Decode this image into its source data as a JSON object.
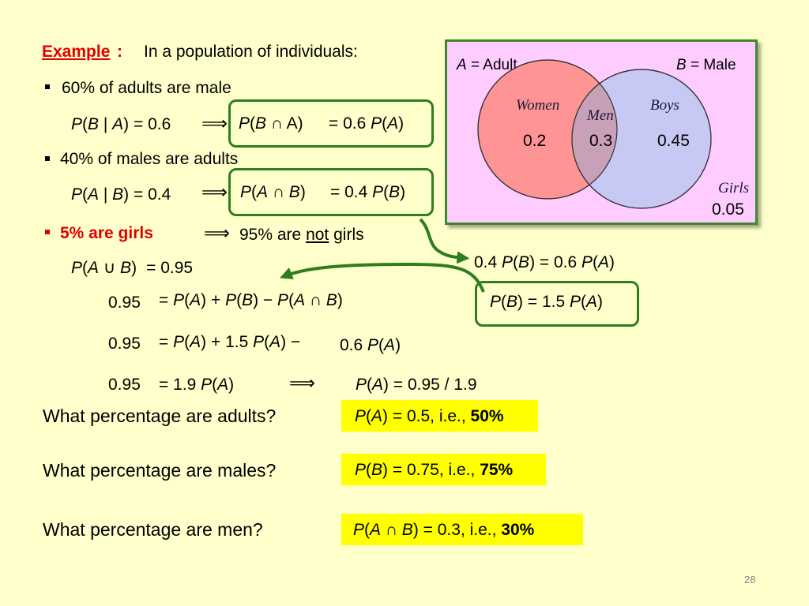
{
  "heading": {
    "label": "Example",
    "colon": ":",
    "text": "In a population of individuals:"
  },
  "bullet1": {
    "text": "60% of adults are male"
  },
  "eq1": {
    "left": [
      "P",
      "(",
      "B",
      " | ",
      "A",
      ") = 0.6"
    ],
    "arrow": "⟹",
    "right": [
      "P",
      "(",
      "B",
      " ∩ A)",
      "= 0.6 ",
      "P",
      "(",
      "A",
      ")"
    ]
  },
  "bullet2": {
    "text": "40% of males are adults"
  },
  "eq2": {
    "left": [
      "P",
      "(",
      "A",
      " | ",
      "B",
      ") = 0.4"
    ],
    "arrow": "⟹",
    "right": [
      "P",
      "(",
      "A",
      " ∩ ",
      "B",
      ")",
      "= 0.4 ",
      "P",
      "(",
      "B",
      ")"
    ]
  },
  "bullet3": {
    "text": "5% are girls",
    "arrow": "⟹",
    "then_pre": "95% are ",
    "then_not": "not",
    "then_post": " girls"
  },
  "eq3": {
    "parts": [
      "P",
      "(",
      "A",
      " ∪ ",
      "B",
      ")",
      "= 0.95"
    ]
  },
  "eq4": {
    "lhs": "0.95",
    "parts": [
      "= ",
      "P",
      "(",
      "A",
      ") + ",
      "P",
      "(",
      "B",
      ") − ",
      "P",
      "(",
      "A",
      " ∩ ",
      "B",
      ")"
    ]
  },
  "eq5": {
    "lhs": "0.95",
    "parts": [
      "= ",
      "P",
      "(",
      "A",
      ") + 1.5 ",
      "P",
      "(",
      "A",
      ") −"
    ],
    "sub": [
      "0.6 ",
      "P",
      "(",
      "A",
      ")"
    ]
  },
  "eq6": {
    "lhs": "0.95",
    "parts": [
      "= 1.9 ",
      "P",
      "(",
      "A",
      ")"
    ],
    "arrow": "⟹",
    "result": [
      "P",
      "(",
      "A",
      ") = 0.95 / 1.9"
    ]
  },
  "side1": {
    "parts": [
      "0.4 ",
      "P",
      "(",
      "B",
      ") = 0.6 ",
      "P",
      "(",
      "A",
      ")"
    ]
  },
  "side2": {
    "parts": [
      "P",
      "(",
      "B",
      ") = 1.5 ",
      "P",
      "(",
      "A",
      ")"
    ]
  },
  "venn": {
    "head_left": [
      "A",
      " = Adult"
    ],
    "head_right": [
      "B",
      " = Male"
    ],
    "women": "Women",
    "men": "Men",
    "boys": "Boys",
    "girls": "Girls",
    "v_women": "0.2",
    "v_men": "0.3",
    "v_boys": "0.45",
    "v_girls": "0.05",
    "colors": {
      "background": "#FFCCFF",
      "circle_a": "#FF9494",
      "circle_b": "#C8C8F5",
      "overlap": "#C8A0B8"
    }
  },
  "questions": [
    {
      "q": "What percentage are adults?",
      "a_pre": [
        "P",
        "(",
        "A",
        ") = 0.5, i.e., "
      ],
      "a_bold": "50%"
    },
    {
      "q": "What percentage are males?",
      "a_pre": [
        "P",
        "(",
        "B",
        ") = 0.75, i.e., "
      ],
      "a_bold": "75%"
    },
    {
      "q": "What percentage are men?",
      "a_pre": [
        "P",
        "(",
        "A",
        " ∩ ",
        "B",
        ")",
        " = 0.3, i.e., "
      ],
      "a_bold": "30%"
    }
  ],
  "page_number": "28",
  "colors": {
    "background": "#FFFFCC",
    "accent_red": "#E00000",
    "green": "#2E7D1E",
    "highlight": "#FFFF00"
  }
}
